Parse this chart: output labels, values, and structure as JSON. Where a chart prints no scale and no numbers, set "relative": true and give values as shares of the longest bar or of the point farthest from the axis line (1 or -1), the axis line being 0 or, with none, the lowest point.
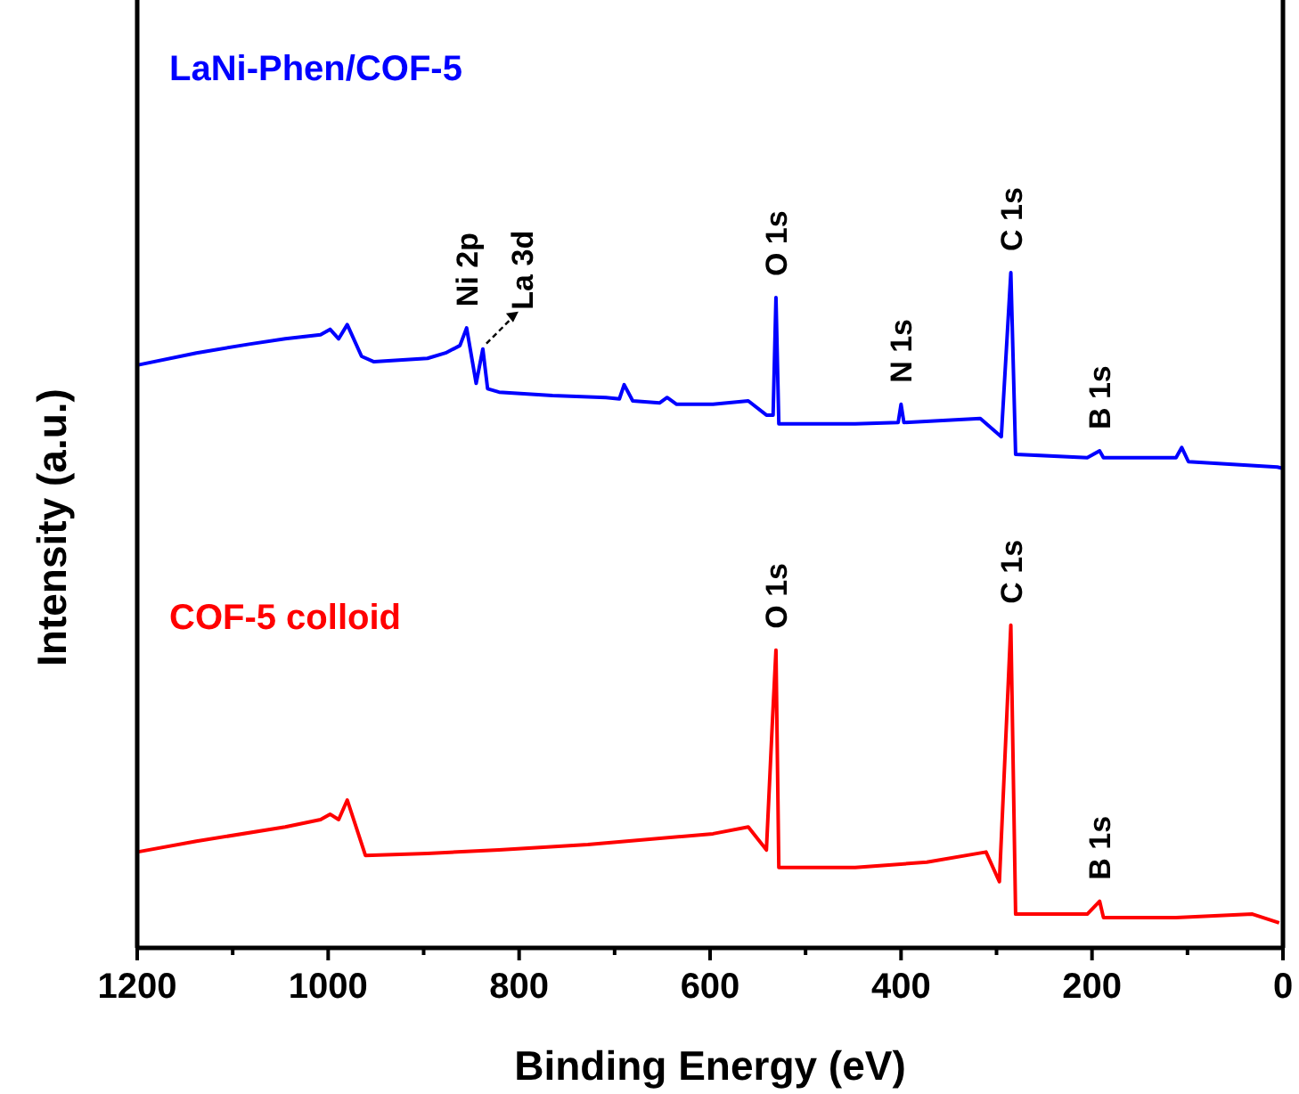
{
  "chart_data": {
    "type": "line",
    "xlabel": "Binding Energy (eV)",
    "ylabel": "Intensity (a.u.)",
    "relative": true,
    "xlim": [
      1200,
      0
    ],
    "xticks": [
      1200,
      {
        "value": 1100,
        "label": null
      },
      1000,
      {
        "value": 900,
        "label": null
      },
      800,
      {
        "value": 700,
        "label": null
      },
      600,
      {
        "value": 500,
        "label": null
      },
      400,
      {
        "value": 300,
        "label": null
      },
      200,
      {
        "value": 100,
        "label": null
      },
      0
    ],
    "grid": false,
    "marker": "none",
    "line_style": "solid",
    "series": [
      {
        "name": "LaNi-Phen/COF-5",
        "color": "#0000ff",
        "x": [
          1200,
          1138,
          1083,
          1045,
          1008,
          998,
          989,
          980,
          965,
          952,
          896,
          877,
          862,
          855,
          845,
          838,
          833,
          821,
          765,
          709,
          695,
          690,
          681,
          653,
          645,
          635,
          597,
          560,
          541,
          534,
          531,
          528,
          448,
          403,
          400,
          397,
          317,
          295,
          285,
          280,
          205,
          192,
          188,
          112,
          106,
          99,
          6,
          0
        ],
        "values": [
          0.863,
          0.881,
          0.894,
          0.902,
          0.908,
          0.916,
          0.902,
          0.923,
          0.876,
          0.868,
          0.873,
          0.881,
          0.892,
          0.918,
          0.836,
          0.887,
          0.828,
          0.823,
          0.818,
          0.815,
          0.813,
          0.834,
          0.81,
          0.807,
          0.815,
          0.805,
          0.805,
          0.81,
          0.789,
          0.789,
          0.963,
          0.776,
          0.776,
          0.778,
          0.805,
          0.778,
          0.784,
          0.757,
          1,
          0.731,
          0.726,
          0.736,
          0.726,
          0.726,
          0.741,
          0.72,
          0.712,
          0.71
        ]
      },
      {
        "name": "COF-5 colloid",
        "color": "#ff0000",
        "x": [
          1200,
          1138,
          1045,
          1008,
          998,
          989,
          980,
          961,
          896,
          821,
          728,
          597,
          560,
          541,
          535,
          531,
          528,
          448,
          373,
          311,
          297,
          285,
          280,
          205,
          192,
          188,
          112,
          32,
          4
        ],
        "values": [
          0.142,
          0.158,
          0.179,
          0.19,
          0.198,
          0.19,
          0.219,
          0.137,
          0.14,
          0.145,
          0.153,
          0.169,
          0.179,
          0.145,
          0.327,
          0.441,
          0.119,
          0.119,
          0.127,
          0.142,
          0.098,
          0.478,
          0.05,
          0.05,
          0.069,
          0.045,
          0.045,
          0.05,
          0.037
        ]
      }
    ],
    "annotations": [
      {
        "text": "Ni 2p",
        "x": 855,
        "y": 0.918
      },
      {
        "text": "La 3d",
        "x": 838,
        "y": 0.887
      },
      {
        "text": "O 1s",
        "x": 531,
        "y": 0.963
      },
      {
        "text": "N 1s",
        "x": 400,
        "y": 0.805
      },
      {
        "text": "C 1s",
        "x": 285,
        "y": 1
      },
      {
        "text": "B 1s",
        "x": 192,
        "y": 0.736
      },
      {
        "text": "O 1s",
        "x": 531,
        "y": 0.441
      },
      {
        "text": "C 1s",
        "x": 285,
        "y": 0.478
      },
      {
        "text": "B 1s",
        "x": 192,
        "y": 0.069
      }
    ]
  }
}
